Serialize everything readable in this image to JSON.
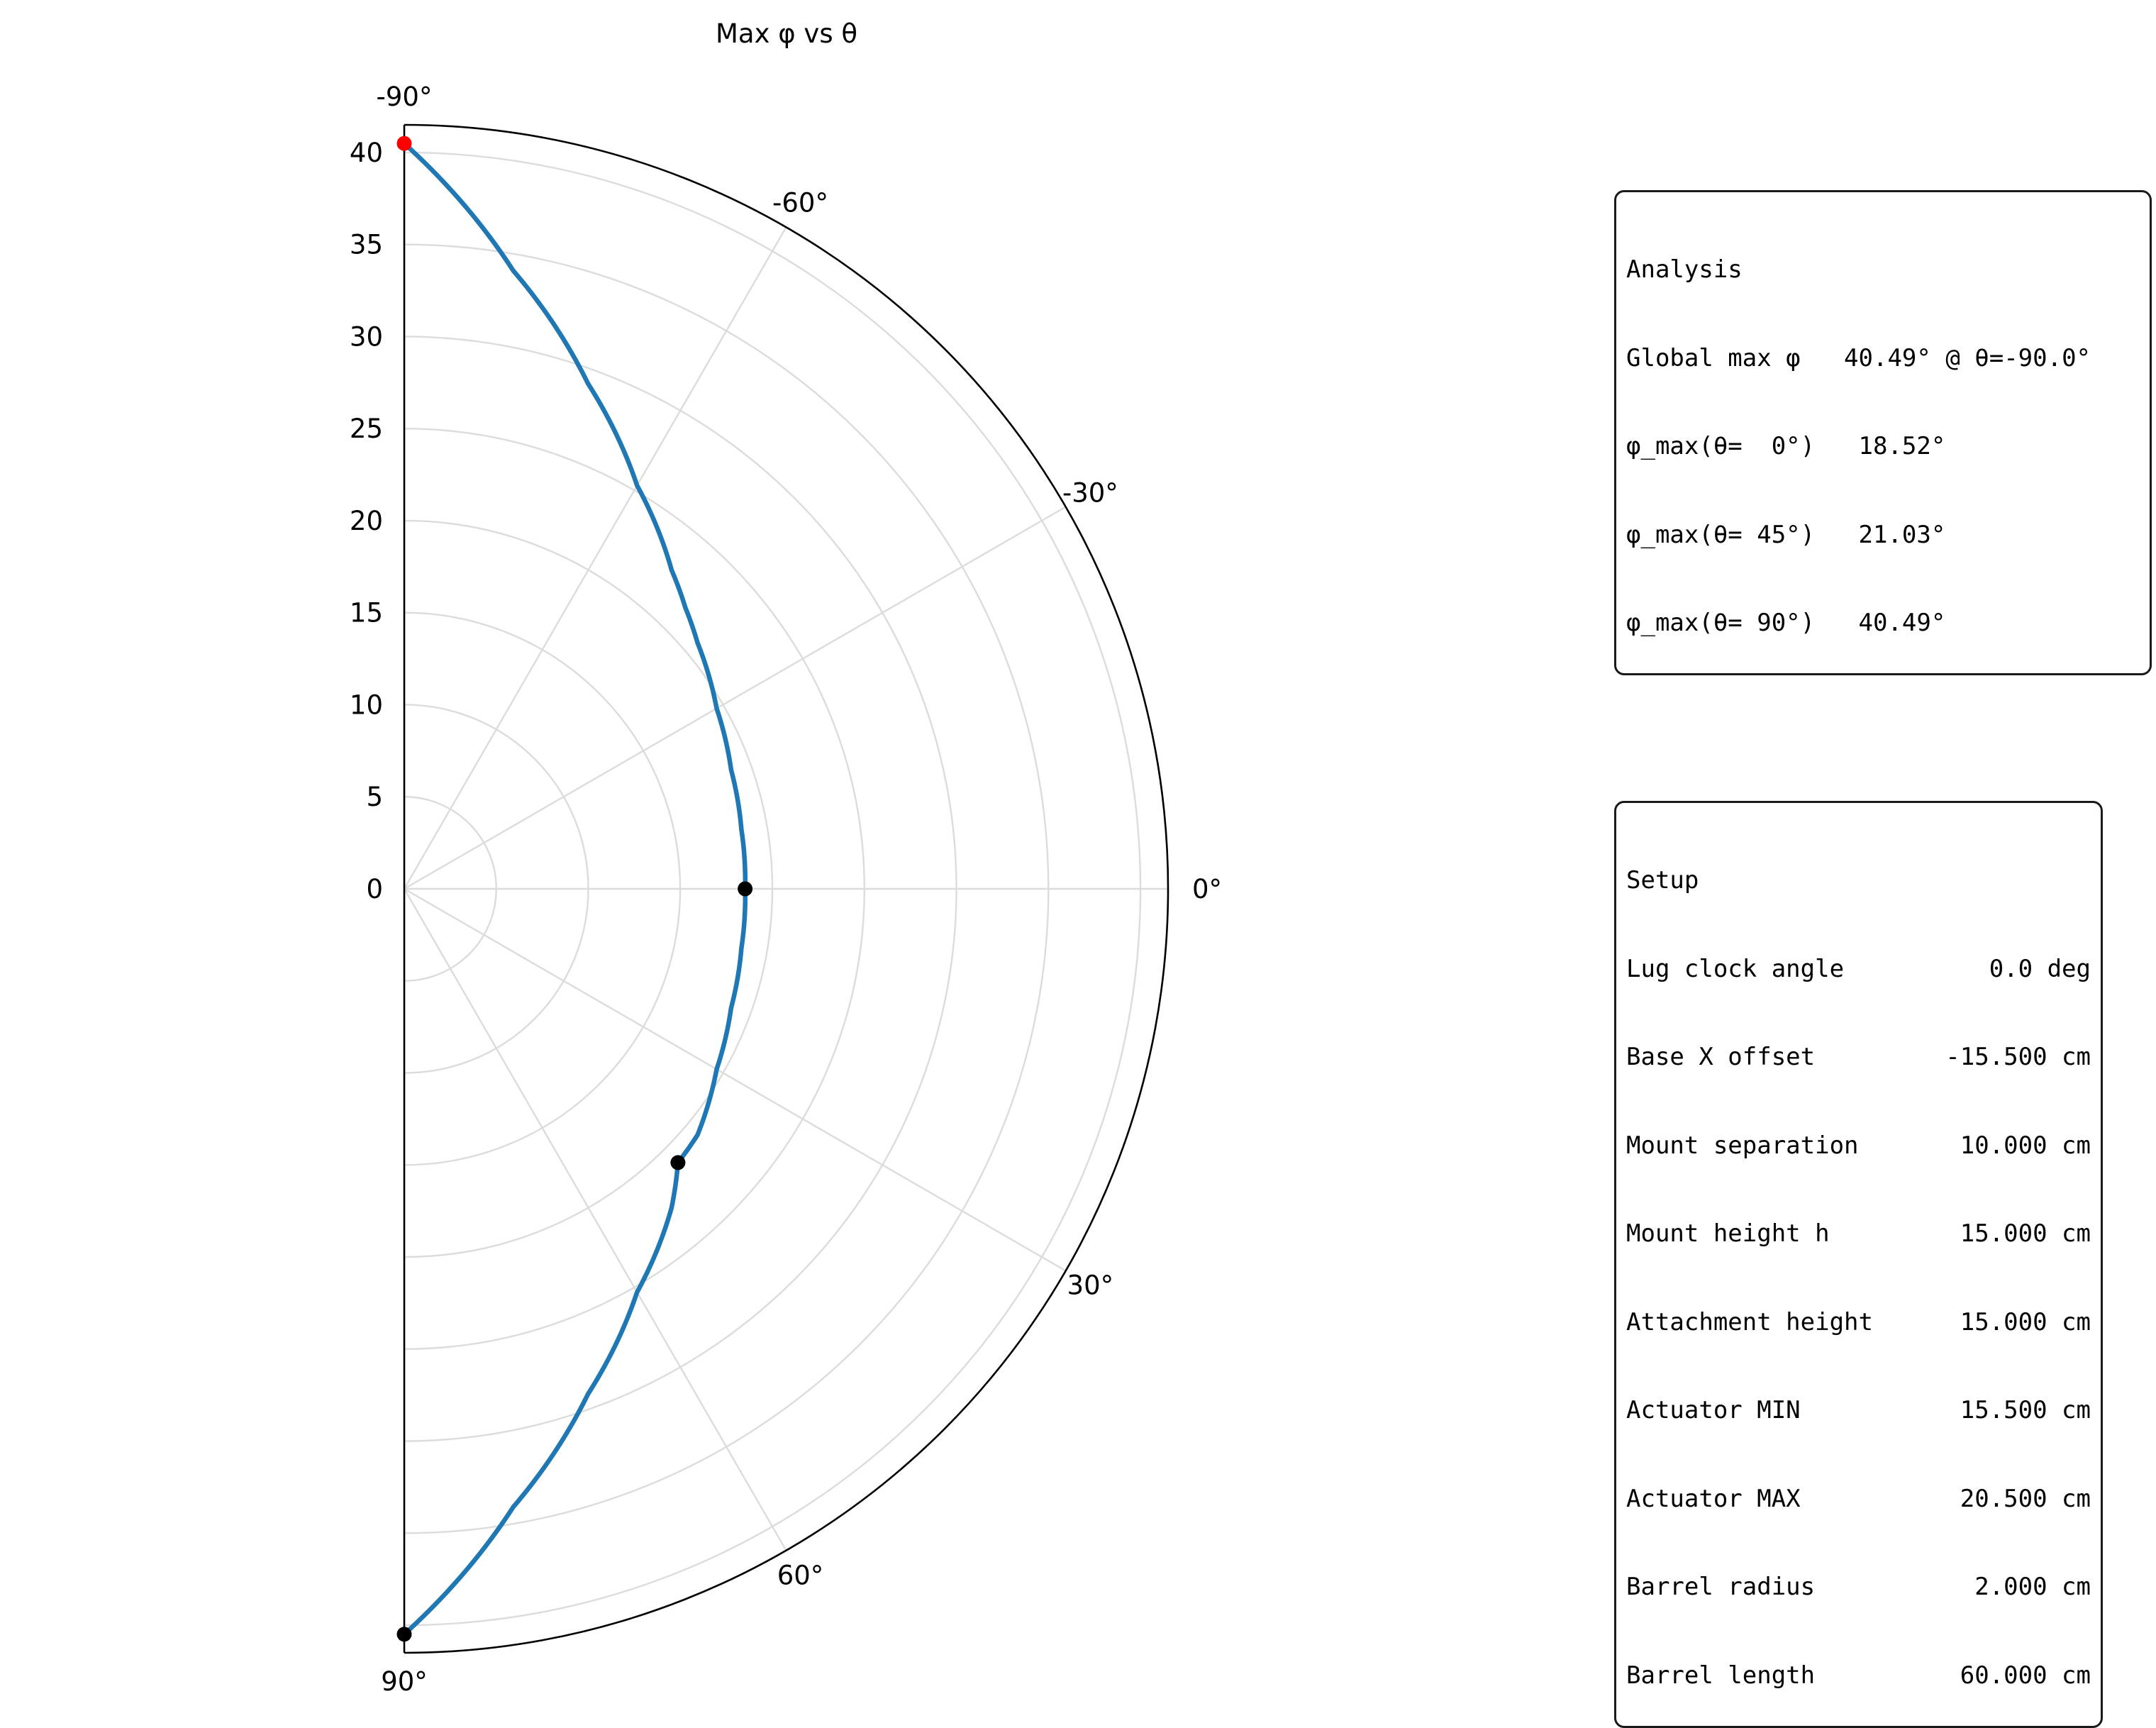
{
  "chart_data": {
    "type": "line",
    "projection": "polar-half",
    "title": "Max φ vs θ",
    "theta_unit": "deg",
    "theta_range": [
      -90,
      90
    ],
    "theta_ticks": [
      -90,
      -60,
      -30,
      0,
      30,
      60,
      90
    ],
    "theta_tick_labels": [
      "-90°",
      "-60°",
      "-30°",
      "0°",
      "30°",
      "60°",
      "90°"
    ],
    "r_range": [
      0,
      41.5
    ],
    "r_ticks": [
      0,
      5,
      10,
      15,
      20,
      25,
      30,
      35,
      40
    ],
    "r_tick_labels": [
      "0",
      "5",
      "10",
      "15",
      "20",
      "25",
      "30",
      "35",
      "40"
    ],
    "grid": true,
    "series": [
      {
        "color": "#1f77b4",
        "theta": [
          -90,
          -80,
          -70,
          -60,
          -50,
          -45,
          -40,
          -30,
          -20,
          -10,
          0,
          10,
          20,
          30,
          40,
          45,
          50,
          60,
          70,
          80,
          90
        ],
        "r": [
          40.49,
          34.1,
          29.2,
          25.3,
          22.6,
          21.6,
          20.8,
          19.6,
          18.9,
          18.6,
          18.52,
          18.6,
          18.9,
          19.6,
          20.8,
          21.03,
          22.6,
          25.3,
          29.2,
          34.1,
          40.49
        ]
      }
    ],
    "markers": [
      {
        "theta": -90,
        "r": 40.49,
        "color": "#ff0000"
      },
      {
        "theta": 0,
        "r": 18.52,
        "color": "#000000"
      },
      {
        "theta": 45,
        "r": 21.03,
        "color": "#000000"
      },
      {
        "theta": 90,
        "r": 40.49,
        "color": "#000000"
      }
    ]
  },
  "analysis": {
    "title": "Analysis",
    "rows": [
      "Global max φ   40.49° @ θ=-90.0°",
      "φ_max(θ=  0°)   18.52°",
      "φ_max(θ= 45°)   21.03°",
      "φ_max(θ= 90°)   40.49°"
    ]
  },
  "setup": {
    "title": "Setup",
    "rows": [
      {
        "label": "Lug clock angle",
        "value": "0.0 deg"
      },
      {
        "label": "Base X offset",
        "value": "-15.500 cm"
      },
      {
        "label": "Mount separation",
        "value": "10.000 cm"
      },
      {
        "label": "Mount height h",
        "value": "15.000 cm"
      },
      {
        "label": "Attachment height",
        "value": "15.000 cm"
      },
      {
        "label": "Actuator MIN",
        "value": "15.500 cm"
      },
      {
        "label": "Actuator MAX",
        "value": "20.500 cm"
      },
      {
        "label": "Barrel radius",
        "value": "2.000 cm"
      },
      {
        "label": "Barrel length",
        "value": "60.000 cm"
      }
    ]
  }
}
